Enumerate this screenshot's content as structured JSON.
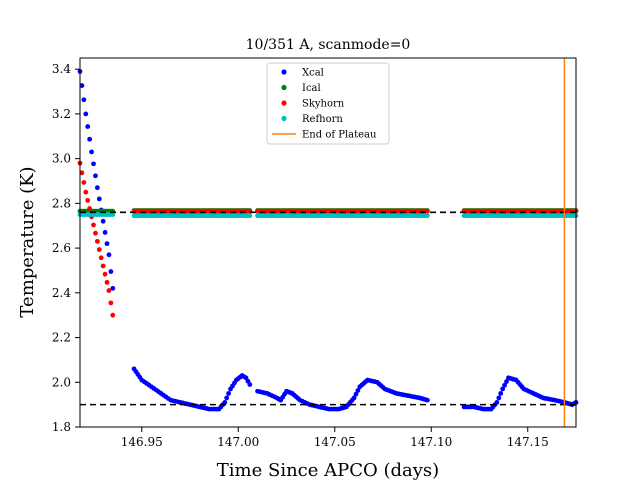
{
  "chart_data": {
    "type": "scatter",
    "title": "10/351 A, scanmode=0",
    "xlabel": "Time Since APCO (days)",
    "ylabel": "Temperature (K)",
    "xlim": [
      146.918,
      147.175
    ],
    "ylim": [
      1.8,
      3.45
    ],
    "x_ticks": [
      146.95,
      147.0,
      147.05,
      147.1,
      147.15
    ],
    "x_tick_labels": [
      "146.95",
      "147.00",
      "147.05",
      "147.10",
      "147.15"
    ],
    "y_ticks": [
      1.8,
      2.0,
      2.2,
      2.4,
      2.6,
      2.8,
      3.0,
      3.2,
      3.4
    ],
    "y_tick_labels": [
      "1.8",
      "2.0",
      "2.2",
      "2.4",
      "2.6",
      "2.8",
      "3.0",
      "3.2",
      "3.4"
    ],
    "grid": false,
    "legend_position": "top-center",
    "series": [
      {
        "name": "Xcal",
        "color": "#0000ff",
        "marker": "dot",
        "segments": [
          [
            [
              146.918,
              3.39
            ],
            [
              146.921,
              3.2
            ],
            [
              146.924,
              3.03
            ],
            [
              146.927,
              2.87
            ],
            [
              146.93,
              2.72
            ],
            [
              146.933,
              2.57
            ],
            [
              146.935,
              2.42
            ]
          ],
          [
            [
              146.946,
              2.06
            ],
            [
              146.95,
              2.01
            ],
            [
              146.955,
              1.98
            ],
            [
              146.96,
              1.95
            ],
            [
              146.965,
              1.92
            ],
            [
              146.97,
              1.91
            ],
            [
              146.975,
              1.9
            ],
            [
              146.98,
              1.89
            ],
            [
              146.985,
              1.88
            ],
            [
              146.99,
              1.88
            ],
            [
              146.993,
              1.91
            ],
            [
              146.996,
              1.97
            ],
            [
              146.999,
              2.01
            ],
            [
              147.002,
              2.03
            ],
            [
              147.004,
              2.02
            ],
            [
              147.006,
              1.99
            ]
          ],
          [
            [
              147.01,
              1.96
            ],
            [
              147.015,
              1.95
            ],
            [
              147.02,
              1.93
            ],
            [
              147.022,
              1.92
            ],
            [
              147.025,
              1.96
            ],
            [
              147.028,
              1.95
            ],
            [
              147.032,
              1.92
            ],
            [
              147.037,
              1.9
            ],
            [
              147.042,
              1.89
            ],
            [
              147.047,
              1.88
            ],
            [
              147.052,
              1.88
            ],
            [
              147.056,
              1.89
            ],
            [
              147.06,
              1.93
            ],
            [
              147.063,
              1.98
            ],
            [
              147.067,
              2.01
            ],
            [
              147.072,
              2.0
            ],
            [
              147.076,
              1.97
            ],
            [
              147.082,
              1.95
            ],
            [
              147.088,
              1.94
            ],
            [
              147.094,
              1.93
            ],
            [
              147.098,
              1.92
            ]
          ],
          [
            [
              147.117,
              1.89
            ],
            [
              147.122,
              1.89
            ],
            [
              147.127,
              1.88
            ],
            [
              147.131,
              1.88
            ],
            [
              147.134,
              1.91
            ],
            [
              147.137,
              1.97
            ],
            [
              147.14,
              2.02
            ],
            [
              147.144,
              2.01
            ],
            [
              147.148,
              1.97
            ],
            [
              147.153,
              1.95
            ],
            [
              147.158,
              1.93
            ],
            [
              147.164,
              1.92
            ],
            [
              147.169,
              1.91
            ],
            [
              147.173,
              1.9
            ],
            [
              147.175,
              1.91
            ]
          ]
        ]
      },
      {
        "name": "Ical",
        "color": "#008000",
        "marker": "dot",
        "segments": [
          [
            [
              146.918,
              2.765
            ],
            [
              146.935,
              2.765
            ]
          ],
          [
            [
              146.946,
              2.768
            ],
            [
              147.006,
              2.768
            ]
          ],
          [
            [
              147.01,
              2.768
            ],
            [
              147.098,
              2.768
            ]
          ],
          [
            [
              147.117,
              2.768
            ],
            [
              147.175,
              2.768
            ]
          ]
        ]
      },
      {
        "name": "Skyhorn",
        "color": "#ff0000",
        "marker": "dot",
        "segments": [
          [
            [
              146.918,
              2.98
            ],
            [
              146.921,
              2.85
            ],
            [
              146.924,
              2.74
            ],
            [
              146.927,
              2.63
            ],
            [
              146.93,
              2.52
            ],
            [
              146.933,
              2.41
            ],
            [
              146.935,
              2.3
            ]
          ],
          [
            [
              146.946,
              2.765
            ],
            [
              147.006,
              2.765
            ]
          ],
          [
            [
              147.01,
              2.765
            ],
            [
              147.098,
              2.765
            ]
          ],
          [
            [
              147.117,
              2.765
            ],
            [
              147.175,
              2.765
            ]
          ]
        ]
      },
      {
        "name": "Refhorn",
        "color": "#00bfbf",
        "marker": "dot",
        "segments": [
          [
            [
              146.918,
              2.75
            ],
            [
              146.935,
              2.75
            ]
          ],
          [
            [
              146.946,
              2.745
            ],
            [
              147.006,
              2.745
            ]
          ],
          [
            [
              147.01,
              2.745
            ],
            [
              147.098,
              2.745
            ]
          ],
          [
            [
              147.117,
              2.745
            ],
            [
              147.175,
              2.745
            ]
          ]
        ]
      }
    ],
    "reference_lines": [
      {
        "orientation": "horizontal",
        "y": 2.76,
        "style": "dashed",
        "color": "#000000"
      },
      {
        "orientation": "horizontal",
        "y": 1.9,
        "style": "dashed",
        "color": "#000000"
      }
    ],
    "end_of_plateau": {
      "name": "End of Plateau",
      "x": 147.169,
      "color": "#ff7f0e"
    }
  }
}
